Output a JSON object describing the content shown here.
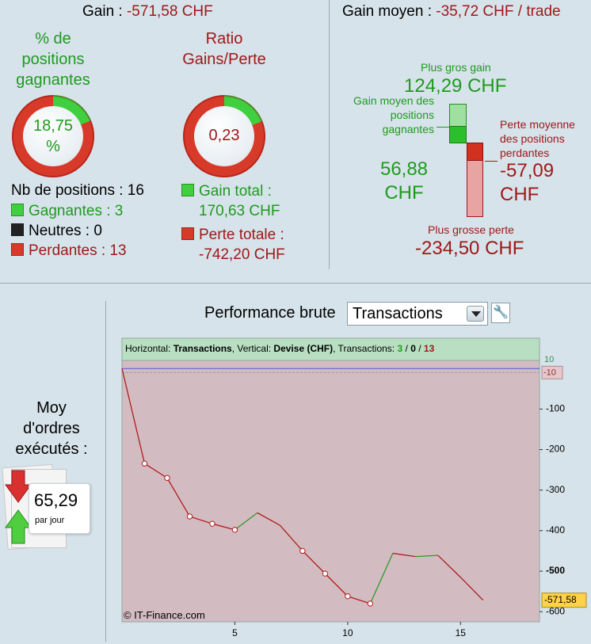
{
  "header": {
    "gain_label": "Gain : ",
    "gain_value": "-571,58 CHF",
    "avg_gain_label": "Gain moyen : ",
    "avg_gain_value": "-35,72 CHF / trade"
  },
  "donut_win": {
    "title_lines": [
      "% de",
      "positions",
      "gagnantes"
    ],
    "value_line1": "18,75",
    "value_line2": "%",
    "fraction": 0.1875
  },
  "donut_ratio": {
    "title_lines": [
      "Ratio",
      "Gains/Perte"
    ],
    "value": "0,23",
    "fraction": 0.19
  },
  "counts": {
    "positions_label": "Nb de positions : 16",
    "winners_label": "Gagnantes : 3",
    "neutral_label": "Neutres : 0",
    "losers_label": "Perdantes : 13"
  },
  "totals": {
    "gain_total_label": "Gain total :",
    "gain_total_value": "170,63 CHF",
    "loss_total_label": "Perte totale :",
    "loss_total_value": "-742,20 CHF"
  },
  "avg_panel": {
    "biggest_gain_label": "Plus gros gain",
    "biggest_gain_value": "124,29 CHF",
    "avg_win_lines": [
      "Gain moyen des",
      "positions",
      "gagnantes"
    ],
    "avg_win_value_lines": [
      "56,88",
      "CHF"
    ],
    "avg_loss_lines": [
      "Perte moyenne",
      "des positions",
      "perdantes"
    ],
    "avg_loss_value_lines": [
      "-57,09",
      "CHF"
    ],
    "biggest_loss_label": "Plus grosse perte",
    "biggest_loss_value": "-234,50 CHF"
  },
  "orders": {
    "label_lines": [
      "Moy",
      "d'ordres",
      "exécutés :"
    ],
    "value": "65,29",
    "unit": "par jour"
  },
  "toolbar": {
    "performance_label": "Performance brute",
    "dropdown_value": "Transactions",
    "settings_icon": "wrench-icon"
  },
  "colors": {
    "gain_green": "#1f9a1f",
    "loss_red": "#a01818",
    "plot_loss_bg": "#d3bcc1",
    "plot_gain_bg": "#b9dfc2"
  },
  "chart_data": {
    "type": "line",
    "info": {
      "h_label": "Horizontal: ",
      "h_value": "Transactions",
      "v_label": ", Vertical: ",
      "v_value": "Devise (CHF)",
      "t_label": ", Transactions: ",
      "t_win": "3",
      "t_sep1": " / ",
      "t_neutral": "0",
      "t_sep2": " / ",
      "t_loss": "13"
    },
    "x": [
      0,
      1,
      2,
      3,
      4,
      5,
      6,
      7,
      8,
      9,
      10,
      11,
      12,
      13,
      14,
      15,
      16
    ],
    "values": [
      0,
      -234.5,
      -270,
      -365,
      -383,
      -398,
      -356,
      -387,
      -450,
      -506,
      -562,
      -580,
      -456,
      -464,
      -461,
      -515,
      -571.58
    ],
    "markers_at": [
      1,
      2,
      3,
      4,
      5,
      8,
      9,
      10,
      11
    ],
    "xlim": [
      0,
      18.5
    ],
    "ylim": [
      -625,
      20
    ],
    "xticks": [
      "5",
      "10",
      "15"
    ],
    "xtick_values": [
      5,
      10,
      15
    ],
    "yticks": [
      "-100",
      "-200",
      "-300",
      "-400",
      "-500",
      "-600"
    ],
    "ytick_values": [
      -100,
      -200,
      -300,
      -400,
      -500,
      -600
    ],
    "bold_ytick": "-500",
    "top_tick_gain": "10",
    "top_tick_loss": "-10",
    "current_value_label": "-571,58",
    "watermark": "© IT-Finance.com"
  }
}
